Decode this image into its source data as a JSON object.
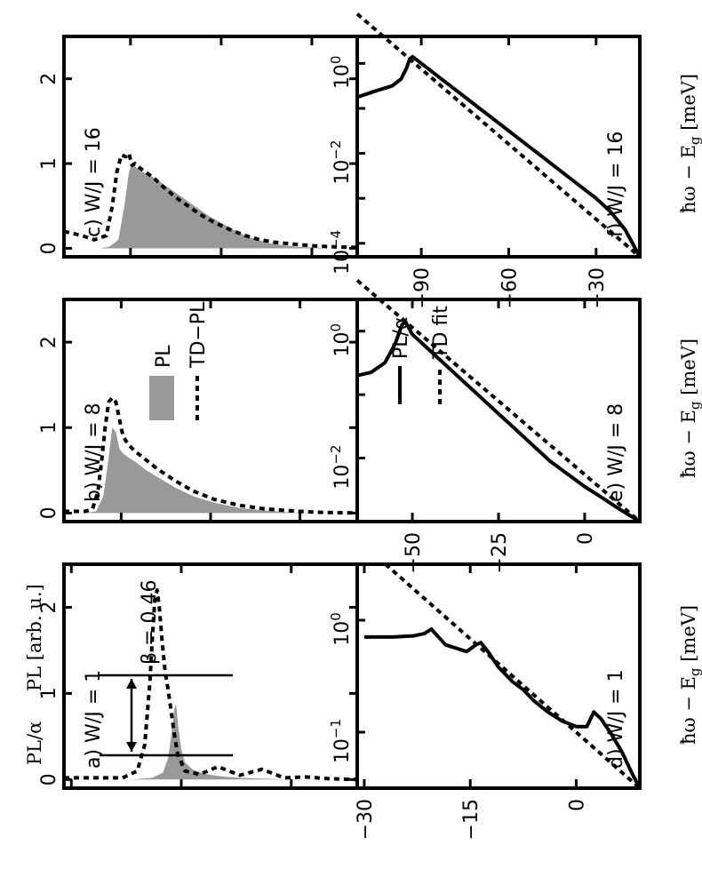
{
  "colors": {
    "fill": "#999999",
    "line": "#000000"
  },
  "labels": {
    "pl_axis": "PL [arb. u.]",
    "ratio_axis": "PL/α",
    "x_axis": "ħω − E",
    "x_axis_sub": "g",
    "x_axis_unit": " [meV]"
  },
  "legends": {
    "top": {
      "pl": "PL",
      "td": "TD−PL"
    },
    "bottom": {
      "pl": "PL/α",
      "td": "TD fit"
    }
  },
  "panels": {
    "a": {
      "title": "a) W/J = 1",
      "beta": "β = 0.46"
    },
    "b": {
      "title": "b) W/J = 8"
    },
    "c": {
      "title": "c) W/J = 16"
    },
    "d": {
      "title": "d) W/J = 1"
    },
    "e": {
      "title": "e) W/J = 8"
    },
    "f": {
      "title": "f) W/J = 16"
    }
  },
  "chart_data": [
    {
      "id": "a",
      "type": "area",
      "title": "a) W/J = 1",
      "xlabel": "ħω − E_g [meV]",
      "ylabel": "PL [arb. u.]",
      "xlim": [
        -31,
        9
      ],
      "ylim": [
        -0.1,
        2.5
      ],
      "yticks": [
        0,
        1,
        2
      ],
      "series": [
        {
          "name": "PL",
          "x": [
            -31,
            -22,
            -19,
            -17.5,
            -16.8,
            -16.3,
            -16,
            -15.7,
            -15.4,
            -15,
            -14.5,
            -13.5,
            -12,
            -10,
            -7,
            -4,
            0,
            5,
            9
          ],
          "values": [
            0,
            0,
            0.02,
            0.08,
            0.25,
            0.55,
            0.8,
            0.88,
            0.6,
            0.35,
            0.2,
            0.12,
            0.07,
            0.04,
            0.02,
            0.01,
            0,
            0,
            0
          ]
        },
        {
          "name": "TD−PL",
          "x": [
            -31,
            -23,
            -21,
            -20,
            -19.3,
            -18.9,
            -18.6,
            -18.3,
            -18,
            -17.6,
            -17.2,
            -16.8,
            -16.4,
            -16,
            -15.5,
            -14.5,
            -12.5,
            -10,
            -7,
            -4,
            -1,
            2,
            5,
            9
          ],
          "values": [
            0.02,
            0.02,
            0.1,
            0.4,
            1.1,
            1.7,
            2.1,
            2.2,
            2.0,
            1.6,
            1.25,
            1.05,
            0.8,
            0.55,
            0.3,
            0.1,
            0.06,
            0.15,
            0.05,
            0.12,
            0.02,
            0.03,
            0.01,
            0
          ]
        }
      ]
    },
    {
      "id": "b",
      "type": "area",
      "title": "b) W/J = 8",
      "xlim": [
        -66,
        16
      ],
      "ylim": [
        -0.1,
        2.5
      ],
      "yticks": [
        0,
        1,
        2
      ],
      "series": [
        {
          "name": "PL",
          "x": [
            -66,
            -60,
            -57,
            -55,
            -53.5,
            -52.5,
            -51.5,
            -50.5,
            -49.5,
            -48,
            -46,
            -43,
            -39,
            -35,
            -30,
            -24,
            -17,
            -10,
            -4,
            4,
            16
          ],
          "values": [
            0,
            0,
            0.02,
            0.2,
            0.65,
            1.0,
            0.95,
            0.75,
            0.7,
            0.65,
            0.6,
            0.5,
            0.4,
            0.3,
            0.2,
            0.12,
            0.06,
            0.03,
            0.01,
            0,
            0
          ]
        },
        {
          "name": "TD−PL",
          "x": [
            -66,
            -60,
            -58,
            -56.5,
            -55.5,
            -54.5,
            -53.5,
            -52.5,
            -51.5,
            -50.5,
            -49.5,
            -48,
            -46,
            -43,
            -40,
            -35,
            -30,
            -24,
            -17,
            -10,
            -4,
            4,
            16
          ],
          "values": [
            0.02,
            0.02,
            0.05,
            0.25,
            0.6,
            1.0,
            1.3,
            1.35,
            1.3,
            1.1,
            0.9,
            0.8,
            0.72,
            0.62,
            0.52,
            0.38,
            0.26,
            0.16,
            0.09,
            0.05,
            0.03,
            0.01,
            0
          ]
        }
      ]
    },
    {
      "id": "c",
      "type": "area",
      "title": "c) W/J = 16",
      "xlim": [
        -112,
        -15
      ],
      "ylim": [
        -0.1,
        2.5
      ],
      "yticks": [
        0,
        1,
        2
      ],
      "series": [
        {
          "name": "PL",
          "x": [
            -112,
            -100,
            -97,
            -94,
            -92,
            -90.5,
            -89.5,
            -88,
            -86,
            -83,
            -80,
            -76,
            -72,
            -68,
            -64,
            -60,
            -56,
            -52,
            -48,
            -44,
            -40,
            -35,
            -30,
            -24,
            -15
          ],
          "values": [
            0,
            0,
            0.02,
            0.1,
            0.5,
            0.9,
            1.0,
            0.95,
            0.9,
            0.85,
            0.78,
            0.68,
            0.58,
            0.48,
            0.38,
            0.3,
            0.22,
            0.15,
            0.1,
            0.06,
            0.04,
            0.02,
            0.01,
            0,
            0
          ]
        },
        {
          "name": "TD−PL",
          "x": [
            -112,
            -106,
            -102,
            -98,
            -96,
            -94.5,
            -93,
            -91.5,
            -90.5,
            -89.5,
            -88.5,
            -87,
            -85,
            -82,
            -79,
            -75,
            -71,
            -67,
            -62,
            -57,
            -52,
            -47,
            -42,
            -36,
            -30,
            -24,
            -15
          ],
          "values": [
            0.2,
            0.15,
            0.1,
            0.15,
            0.5,
            0.9,
            1.1,
            1.08,
            1.12,
            0.98,
            1.0,
            0.95,
            0.9,
            0.82,
            0.72,
            0.6,
            0.5,
            0.4,
            0.3,
            0.22,
            0.15,
            0.1,
            0.07,
            0.05,
            0.03,
            0.02,
            0.01
          ]
        }
      ]
    },
    {
      "id": "d",
      "type": "line",
      "title": "d) W/J = 1",
      "xlabel": "ħω − E_g [meV]",
      "ylabel": "PL/α",
      "scale": "log",
      "xlim": [
        -31,
        9
      ],
      "xticks": [
        -30,
        -15,
        0
      ],
      "ylim_log10": [
        -1.5,
        0.5
      ],
      "ytick_labels": [
        "10^0",
        "10^-1"
      ],
      "series": [
        {
          "name": "PL/α",
          "x": [
            -30,
            -26,
            -23,
            -21.5,
            -20.5,
            -19.5,
            -18.5,
            -17,
            -15.5,
            -14.2,
            -13.5,
            -12.5,
            -11,
            -9,
            -7.5,
            -6,
            -4,
            -2,
            0,
            1.5,
            2.5,
            3.5,
            5,
            6.5,
            8,
            9
          ],
          "log10_values": [
            -0.15,
            -0.15,
            -0.14,
            -0.12,
            -0.08,
            -0.15,
            -0.22,
            -0.25,
            -0.28,
            -0.22,
            -0.2,
            -0.28,
            -0.42,
            -0.55,
            -0.62,
            -0.72,
            -0.82,
            -0.9,
            -0.95,
            -0.95,
            -0.82,
            -0.88,
            -1.02,
            -1.18,
            -1.38,
            -1.5
          ]
        },
        {
          "name": "TD fit",
          "x": [
            -27,
            9
          ],
          "log10_values": [
            0.5,
            -1.5
          ]
        }
      ]
    },
    {
      "id": "e",
      "type": "line",
      "title": "e) W/J = 8",
      "scale": "log",
      "xlim": [
        -66,
        16
      ],
      "xticks": [
        -50,
        -25,
        0
      ],
      "ylim_log10": [
        -3.0,
        0.5
      ],
      "ytick_labels": [
        "10^0",
        "10^-2"
      ],
      "series": [
        {
          "name": "PL/α",
          "x": [
            -66,
            -62,
            -58,
            -55,
            -53,
            -52,
            -51.5,
            -50,
            -48,
            -45,
            -40,
            -35,
            -30,
            -25,
            -20,
            -15,
            -10,
            -5,
            0,
            5,
            10,
            16
          ],
          "log10_values": [
            -0.7,
            -0.65,
            -0.5,
            -0.2,
            0.1,
            0.15,
            0.1,
            -0.05,
            -0.15,
            -0.3,
            -0.55,
            -0.8,
            -1.05,
            -1.3,
            -1.55,
            -1.8,
            -2.05,
            -2.25,
            -2.45,
            -2.62,
            -2.8,
            -3.0
          ]
        },
        {
          "name": "TD fit",
          "x": [
            -66,
            16
          ],
          "log10_values": [
            0.8,
            -3.0
          ]
        }
      ]
    },
    {
      "id": "f",
      "type": "line",
      "title": "f) W/J = 16",
      "scale": "log",
      "xlim": [
        -112,
        -15
      ],
      "xticks": [
        -90,
        -60,
        -30
      ],
      "ylim_log10": [
        -4.3,
        0.6
      ],
      "ytick_labels": [
        "10^0",
        "10^-2",
        "10^-4"
      ],
      "series": [
        {
          "name": "PL/α",
          "x": [
            -112,
            -105,
            -100,
            -97,
            -95,
            -94,
            -93,
            -91,
            -88,
            -84,
            -80,
            -75,
            -70,
            -65,
            -60,
            -55,
            -50,
            -45,
            -40,
            -35,
            -30,
            -25,
            -20,
            -15
          ],
          "log10_values": [
            -0.75,
            -0.6,
            -0.5,
            -0.35,
            -0.1,
            0.1,
            0.15,
            0.05,
            -0.1,
            -0.3,
            -0.5,
            -0.75,
            -1.0,
            -1.25,
            -1.5,
            -1.75,
            -2.0,
            -2.25,
            -2.5,
            -2.75,
            -3.0,
            -3.3,
            -3.7,
            -4.3
          ]
        },
        {
          "name": "TD fit",
          "x": [
            -112,
            -15
          ],
          "log10_values": [
            1.1,
            -4.3
          ]
        }
      ]
    }
  ]
}
